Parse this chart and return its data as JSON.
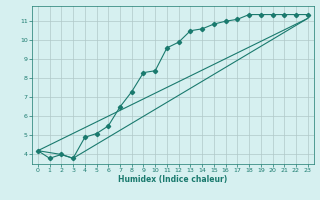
{
  "xlabel": "Humidex (Indice chaleur)",
  "bg_color": "#d6f0f0",
  "grid_color": "#b0c8c8",
  "line_color": "#1a7a6e",
  "xlim": [
    -0.5,
    23.5
  ],
  "ylim": [
    3.5,
    11.8
  ],
  "xticks": [
    0,
    1,
    2,
    3,
    4,
    5,
    6,
    7,
    8,
    9,
    10,
    11,
    12,
    13,
    14,
    15,
    16,
    17,
    18,
    19,
    20,
    21,
    22,
    23
  ],
  "yticks": [
    4,
    5,
    6,
    7,
    8,
    9,
    10,
    11
  ],
  "line1_x": [
    0,
    1,
    2,
    3,
    4,
    5,
    6,
    7,
    8,
    9,
    10,
    11,
    12,
    13,
    14,
    15,
    16,
    17,
    18,
    19,
    20,
    21,
    22,
    23
  ],
  "line1_y": [
    4.2,
    3.8,
    4.0,
    3.8,
    4.9,
    5.1,
    5.5,
    6.5,
    7.3,
    8.3,
    8.4,
    9.6,
    9.9,
    10.5,
    10.6,
    10.85,
    11.0,
    11.1,
    11.35,
    11.35,
    11.35,
    11.35,
    11.35,
    11.35
  ],
  "line2_x": [
    0,
    23
  ],
  "line2_y": [
    4.2,
    11.15
  ],
  "line3_x": [
    0,
    2,
    3,
    23
  ],
  "line3_y": [
    4.2,
    4.0,
    3.8,
    11.15
  ]
}
